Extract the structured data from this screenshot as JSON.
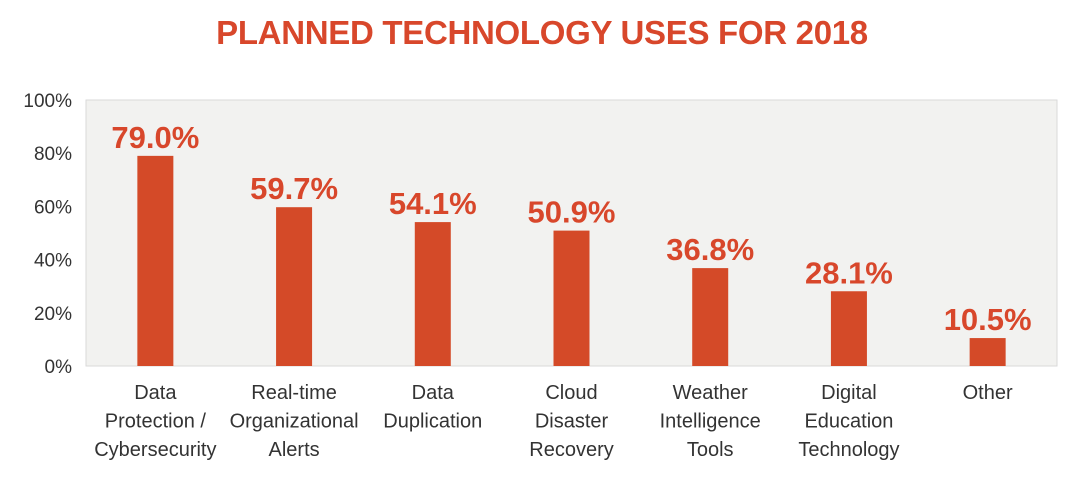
{
  "chart_data": {
    "type": "bar",
    "title": "PLANNED TECHNOLOGY USES FOR 2018",
    "xlabel": "",
    "ylabel": "",
    "categories": [
      [
        "Data",
        "Protection /",
        "Cybersecurity"
      ],
      [
        "Real-time",
        "Organizational",
        "Alerts"
      ],
      [
        "Data",
        "Duplication"
      ],
      [
        "Cloud",
        "Disaster",
        "Recovery"
      ],
      [
        "Weather",
        "Intelligence",
        "Tools"
      ],
      [
        "Digital",
        "Education",
        "Technology"
      ],
      [
        "Other"
      ]
    ],
    "values": [
      79.0,
      59.7,
      54.1,
      50.9,
      36.8,
      28.1,
      10.5
    ],
    "data_labels": [
      "79.0%",
      "59.7%",
      "54.1%",
      "50.9%",
      "36.8%",
      "28.1%",
      "10.5%"
    ],
    "y_ticks": [
      0,
      20,
      40,
      60,
      80,
      100
    ],
    "y_tick_labels": [
      "0%",
      "20%",
      "40%",
      "60%",
      "80%",
      "100%"
    ],
    "ylim": [
      0,
      100
    ],
    "grid": false,
    "legend": "none",
    "colors": {
      "bar": "#d44a28",
      "title": "#d8472b",
      "plot_background": "#f2f2f0",
      "plot_border": "#d9d9d9"
    }
  }
}
